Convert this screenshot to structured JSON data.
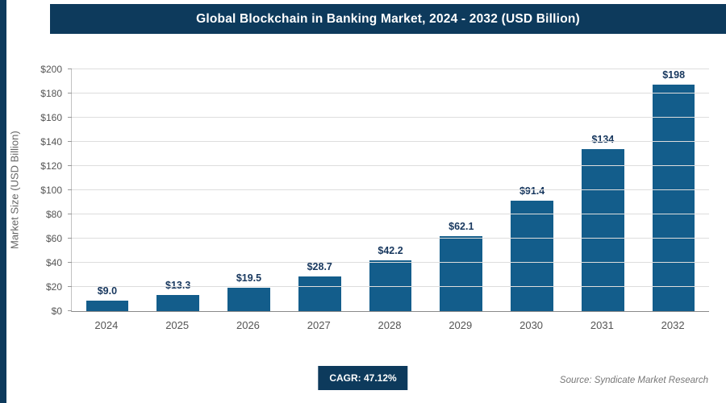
{
  "cagr_label": "CAGR: 47.12%",
  "source": "Source: Syndicate Market Research",
  "colors": {
    "header": "#0d3a5c",
    "bar": "#135d8b",
    "grid": "#dddddd",
    "value_label": "#17375e"
  },
  "chart_data": {
    "type": "bar",
    "title": "Global Blockchain in Banking Market, 2024 - 2032 (USD Billion)",
    "categories": [
      "2024",
      "2025",
      "2026",
      "2027",
      "2028",
      "2029",
      "2030",
      "2031",
      "2032"
    ],
    "values": [
      9.0,
      13.3,
      19.5,
      28.7,
      42.2,
      62.1,
      91.4,
      134,
      198
    ],
    "value_labels": [
      "$9.0",
      "$13.3",
      "$19.5",
      "$28.7",
      "$42.2",
      "$62.1",
      "$91.4",
      "$134",
      "$198"
    ],
    "xlabel": "",
    "ylabel": "Market Size (USD Billion)",
    "ylim": [
      0,
      200
    ],
    "ytick_step": 20,
    "ytick_labels": [
      "$0",
      "$20",
      "$40",
      "$60",
      "$80",
      "$100",
      "$120",
      "$140",
      "$160",
      "$180",
      "$200"
    ],
    "grid": true,
    "legend": false,
    "annotations": [
      "CAGR: 47.12%",
      "Source: Syndicate Market Research"
    ]
  }
}
